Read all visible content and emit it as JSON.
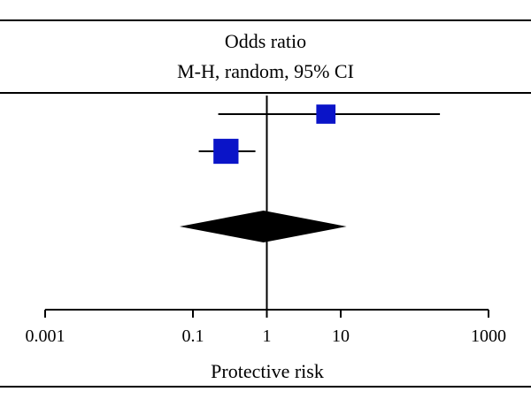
{
  "header": {
    "line1": "Odds ratio",
    "line2": "M-H, random, 95% CI"
  },
  "chart_data": {
    "type": "forest",
    "scale": "log",
    "xlim": [
      0.001,
      1000
    ],
    "reference_line": 1,
    "xlabel": "Protective risk",
    "ticks": [
      {
        "value": 0.001,
        "label": "0.001"
      },
      {
        "value": 0.1,
        "label": "0.1"
      },
      {
        "value": 1,
        "label": "1"
      },
      {
        "value": 10,
        "label": "10"
      },
      {
        "value": 1000,
        "label": "1000"
      }
    ],
    "studies": [
      {
        "or": 6.3,
        "ci": [
          0.22,
          220
        ],
        "weight": 0.35
      },
      {
        "or": 0.28,
        "ci": [
          0.12,
          0.7
        ],
        "weight": 0.65
      }
    ],
    "pooled": {
      "or": 0.9,
      "ci": [
        0.066,
        12
      ]
    },
    "colors": {
      "study_box": "#0a14c8",
      "pooled": "#000000",
      "lines": "#000000"
    }
  }
}
